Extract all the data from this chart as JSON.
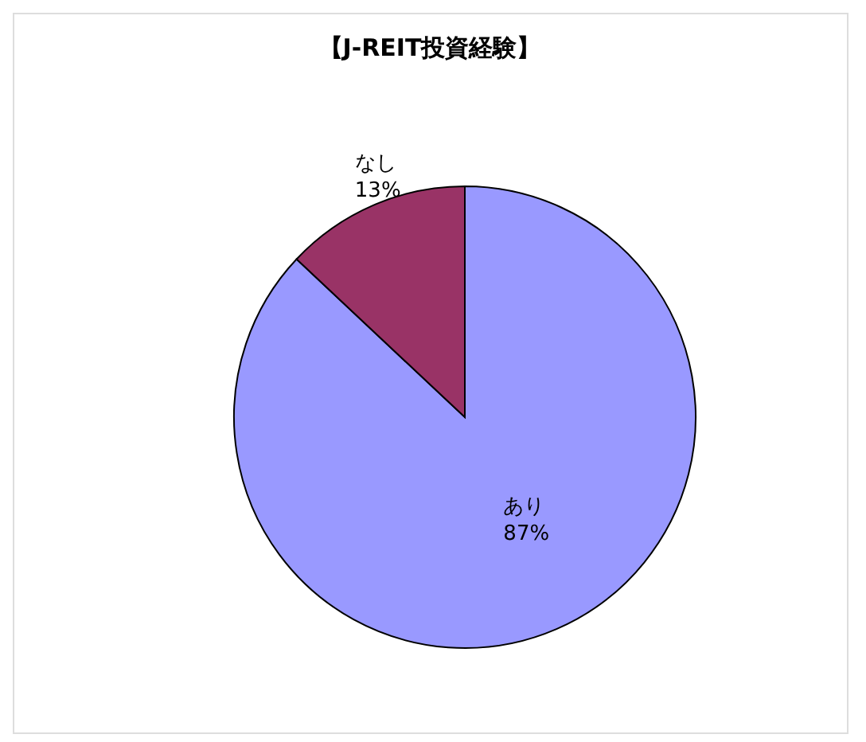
{
  "chart_data": {
    "type": "pie",
    "title": "【J-REIT投資経験】",
    "categories": [
      "あり",
      "なし"
    ],
    "values": [
      87,
      13
    ],
    "colors": [
      "#9999ff",
      "#993366"
    ],
    "value_labels": [
      "87%",
      "13%"
    ]
  }
}
